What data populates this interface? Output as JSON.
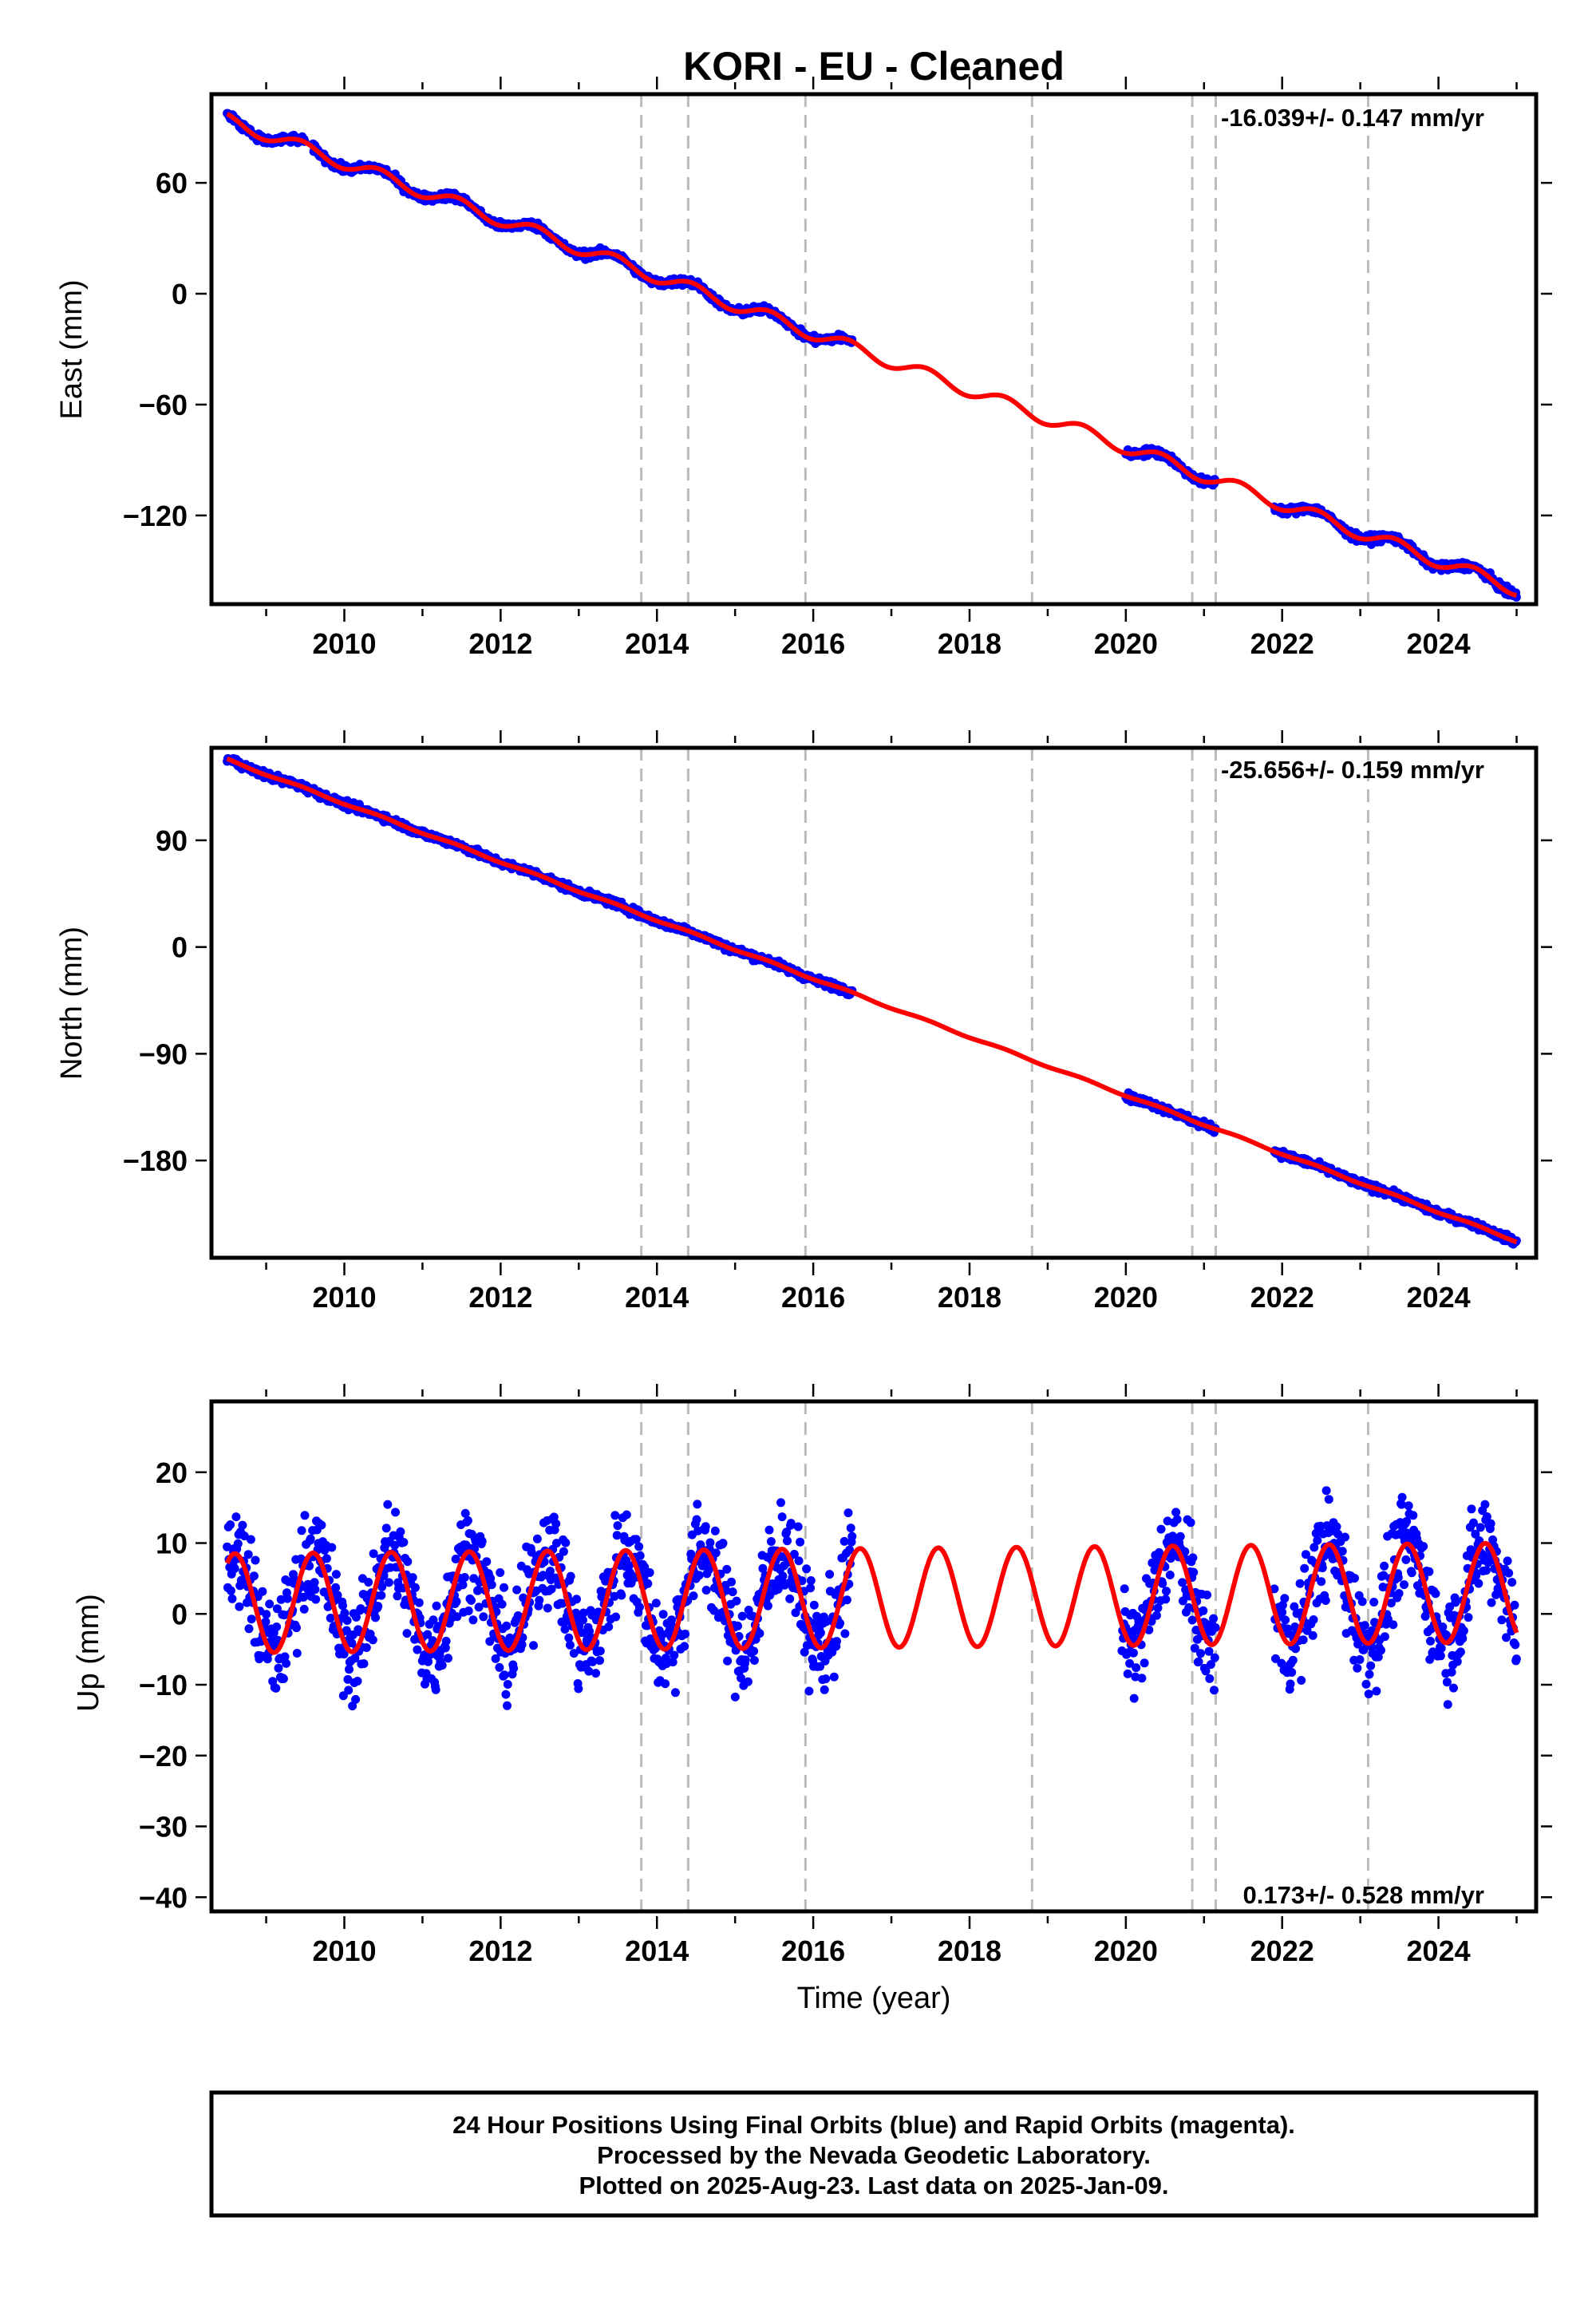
{
  "title": "KORI  - EU - Cleaned",
  "chart_data": [
    {
      "type": "scatter",
      "id": "east",
      "ylabel": "East (mm)",
      "ylim": [
        -168,
        108
      ],
      "xlim": [
        2008.3,
        2025.25
      ],
      "yticks": [
        60,
        0,
        -60,
        -120
      ],
      "xticks": [
        2010,
        2012,
        2014,
        2016,
        2018,
        2020,
        2022,
        2024
      ],
      "rate_text": "-16.039+/- 0.147 mm/yr",
      "rate_position": "top-right",
      "dashed_lines": [
        2013.8,
        2014.4,
        2015.9,
        2018.8,
        2020.85,
        2021.15,
        2023.1
      ],
      "data_segments": [
        [
          2008.5,
          2009.5
        ],
        [
          2009.6,
          2016.5
        ],
        [
          2020.0,
          2020.85
        ],
        [
          2020.85,
          2021.15
        ],
        [
          2021.9,
          2025.0
        ]
      ],
      "trend": {
        "x": [
          2008.5,
          2025.0
        ],
        "y": [
          94,
          -160
        ]
      },
      "annual_amplitude": 3.5,
      "series": [
        {
          "color": "#0000ff",
          "kind": "points",
          "style": "daily positions"
        },
        {
          "color": "#ff0000",
          "kind": "line",
          "style": "model fit"
        }
      ]
    },
    {
      "type": "scatter",
      "id": "north",
      "ylabel": "North (mm)",
      "ylim": [
        -262,
        168
      ],
      "xlim": [
        2008.3,
        2025.25
      ],
      "yticks": [
        90,
        0,
        -90,
        -180
      ],
      "xticks": [
        2010,
        2012,
        2014,
        2016,
        2018,
        2020,
        2022,
        2024
      ],
      "rate_text": "-25.656+/- 0.159 mm/yr",
      "rate_position": "top-right",
      "dashed_lines": [
        2013.8,
        2014.4,
        2015.9,
        2018.8,
        2020.85,
        2021.15,
        2023.1
      ],
      "data_segments": [
        [
          2008.5,
          2016.5
        ],
        [
          2020.0,
          2020.85
        ],
        [
          2020.85,
          2021.15
        ],
        [
          2021.9,
          2025.0
        ]
      ],
      "trend": {
        "x": [
          2008.5,
          2025.0
        ],
        "y": [
          158,
          -248
        ]
      },
      "annual_amplitude": 0.8,
      "series": [
        {
          "color": "#0000ff",
          "kind": "points",
          "style": "daily positions"
        },
        {
          "color": "#ff0000",
          "kind": "line",
          "style": "model fit"
        }
      ]
    },
    {
      "type": "scatter",
      "id": "up",
      "xlabel": "Time (year)",
      "ylabel": "Up (mm)",
      "ylim": [
        -42,
        30
      ],
      "xlim": [
        2008.3,
        2025.25
      ],
      "yticks": [
        20,
        10,
        0,
        -10,
        -20,
        -30,
        -40
      ],
      "xticks": [
        2010,
        2012,
        2014,
        2016,
        2018,
        2020,
        2022,
        2024
      ],
      "rate_text": "0.173+/- 0.528 mm/yr",
      "rate_position": "bottom-right",
      "dashed_lines": [
        2013.8,
        2014.4,
        2015.9,
        2018.8,
        2020.85,
        2021.15,
        2023.1
      ],
      "data_segments": [
        [
          2008.5,
          2016.5
        ],
        [
          2019.95,
          2020.85
        ],
        [
          2020.85,
          2021.15
        ],
        [
          2021.9,
          2025.0
        ]
      ],
      "trend": {
        "x": [
          2008.5,
          2025.0
        ],
        "y": [
          1.5,
          3.0
        ]
      },
      "annual_amplitude": 7.0,
      "annual_peak_phase": 0.6,
      "scatter_sd": 5.0,
      "series": [
        {
          "color": "#0000ff",
          "kind": "points",
          "style": "daily positions"
        },
        {
          "color": "#ff0000",
          "kind": "line",
          "style": "model fit"
        }
      ]
    }
  ],
  "footer": {
    "line1": "24 Hour Positions Using Final Orbits (blue) and Rapid Orbits (magenta).",
    "line2": "Processed by the Nevada Geodetic Laboratory.",
    "line3": "Plotted on 2025-Aug-23. Last data on 2025-Jan-09."
  }
}
